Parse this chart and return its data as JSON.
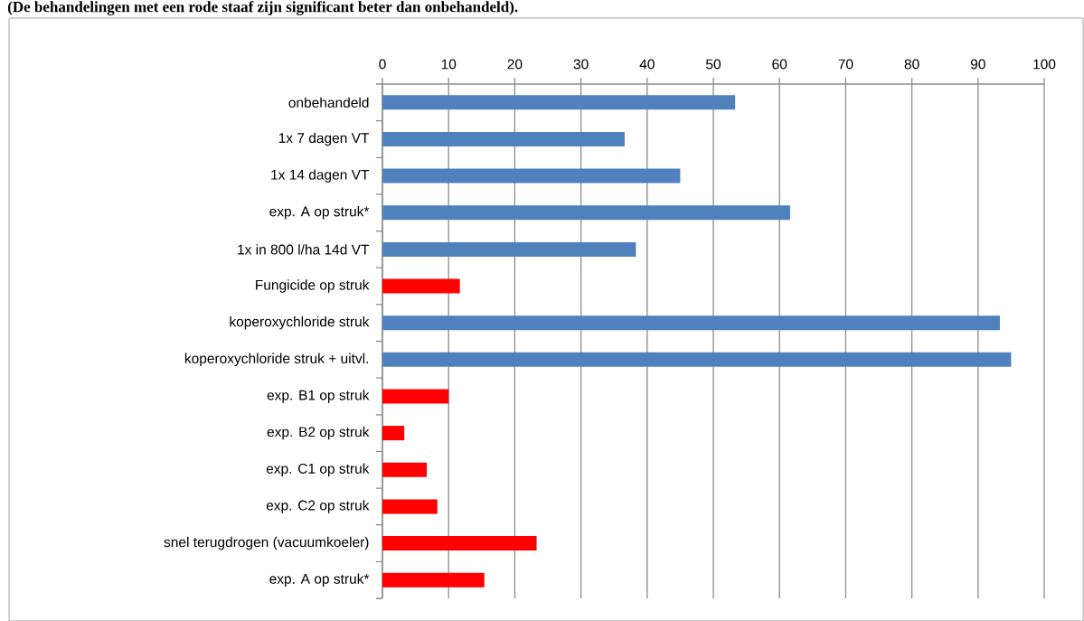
{
  "chart_data": {
    "type": "bar",
    "orientation": "horizontal",
    "title": "(De behandelingen met een rode staaf zijn significant beter dan onbehandeld).",
    "categories": [
      "onbehandeld",
      "1x 7 dagen VT",
      "1x 14 dagen VT",
      "exp. A op struk*",
      "1x in 800 l/ha 14d VT",
      "Fungicide op struk",
      "koperoxychloride struk",
      "koperoxychloride struk + uitvl.",
      "exp. B1 op struk",
      "exp. B2 op struk",
      "exp. C1 op struk",
      "exp. C2 op struk",
      "snel terugdrogen (vacuumkoeler)",
      "exp. A op struk*"
    ],
    "values": [
      53.3,
      36.6,
      45,
      61.6,
      38.3,
      11.7,
      93.3,
      95,
      10,
      3.3,
      6.7,
      8.3,
      23.3,
      15.4
    ],
    "colors": [
      "#4f81bd",
      "#4f81bd",
      "#4f81bd",
      "#4f81bd",
      "#4f81bd",
      "#ff0000",
      "#4f81bd",
      "#4f81bd",
      "#ff0000",
      "#ff0000",
      "#ff0000",
      "#ff0000",
      "#ff0000",
      "#ff0000"
    ],
    "xlim": [
      0,
      100
    ],
    "xticks": [
      0,
      10,
      20,
      30,
      40,
      50,
      60,
      70,
      80,
      90,
      100
    ],
    "grid": "x"
  }
}
